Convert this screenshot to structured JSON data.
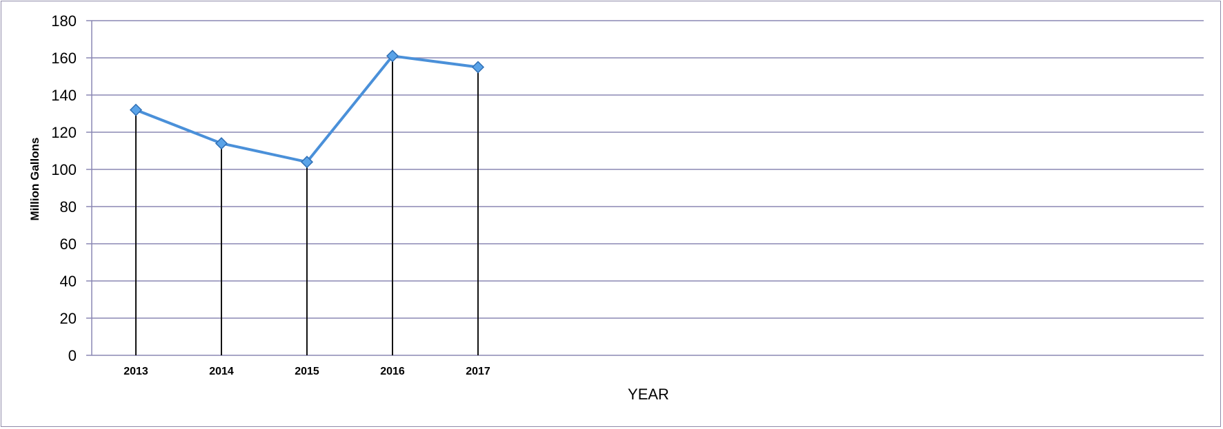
{
  "chart_data": {
    "type": "line",
    "x": [
      "2013",
      "2014",
      "2015",
      "2016",
      "2017"
    ],
    "series": [
      {
        "values": [
          132,
          114,
          104,
          161,
          155
        ],
        "color": "#4a90d9"
      }
    ],
    "xlabel": "YEAR",
    "ylabel": "Million Gallons",
    "ylim": [
      0,
      180
    ],
    "yticks": [
      0,
      20,
      40,
      60,
      80,
      100,
      120,
      140,
      160,
      180
    ],
    "grid": true,
    "drop_lines": true,
    "marker": "diamond",
    "gridline_color": "#8a87b3",
    "dropline_color": "#111111"
  }
}
